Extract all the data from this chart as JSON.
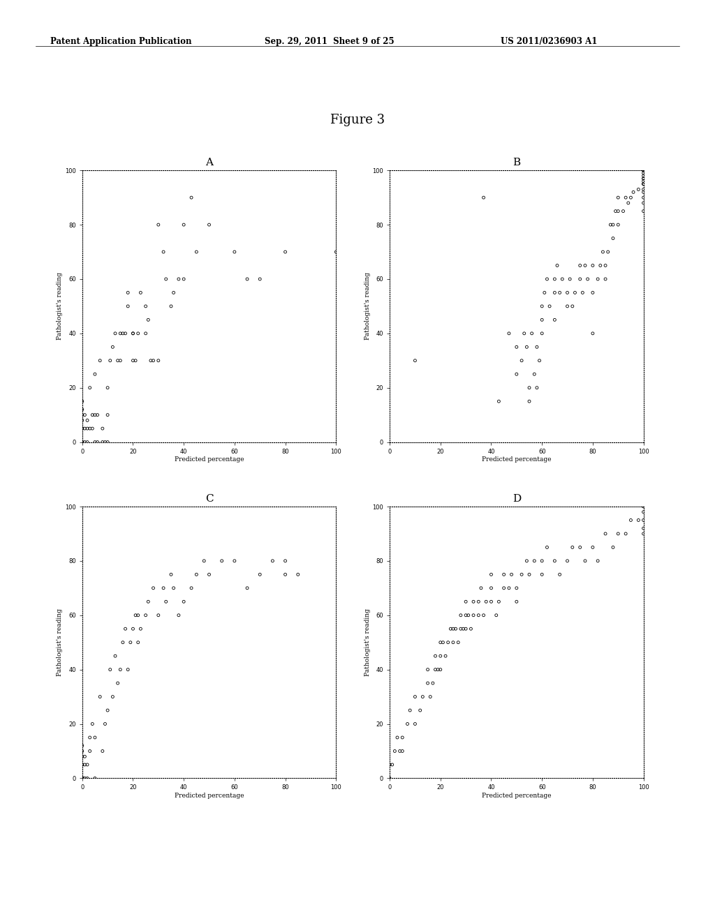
{
  "figure_title": "Figure 3",
  "header_left": "Patent Application Publication",
  "header_center": "Sep. 29, 2011  Sheet 9 of 25",
  "header_right": "US 2011/0236903 A1",
  "subplot_labels": [
    "A",
    "B",
    "C",
    "D"
  ],
  "xlabel": "Predicted percentage",
  "ylabel": "Pathologist's reading",
  "xlim": [
    0,
    100
  ],
  "ylim": [
    0,
    100
  ],
  "xticks": [
    0,
    20,
    40,
    60,
    80,
    100
  ],
  "yticks": [
    0,
    20,
    40,
    60,
    80,
    100
  ],
  "plot_A_x": [
    0,
    0,
    0,
    0,
    0,
    0,
    0,
    0,
    0,
    1,
    1,
    1,
    2,
    2,
    2,
    3,
    3,
    4,
    4,
    5,
    5,
    5,
    6,
    6,
    7,
    8,
    8,
    9,
    10,
    10,
    10,
    11,
    12,
    13,
    14,
    15,
    15,
    16,
    17,
    18,
    18,
    20,
    20,
    20,
    21,
    22,
    23,
    25,
    25,
    26,
    27,
    28,
    30,
    30,
    32,
    33,
    35,
    36,
    38,
    40,
    40,
    43,
    45,
    50,
    60,
    65,
    70,
    80,
    100
  ],
  "plot_A_y": [
    0,
    0,
    0,
    5,
    5,
    8,
    10,
    12,
    15,
    0,
    5,
    10,
    0,
    5,
    8,
    5,
    20,
    5,
    10,
    0,
    10,
    25,
    0,
    10,
    30,
    0,
    5,
    0,
    0,
    10,
    20,
    30,
    35,
    40,
    30,
    30,
    40,
    40,
    40,
    50,
    55,
    30,
    40,
    40,
    30,
    40,
    55,
    40,
    50,
    45,
    30,
    30,
    30,
    80,
    70,
    60,
    50,
    55,
    60,
    60,
    80,
    90,
    70,
    80,
    70,
    60,
    60,
    70,
    70
  ],
  "plot_B_x": [
    10,
    37,
    43,
    47,
    50,
    50,
    52,
    53,
    54,
    55,
    55,
    56,
    57,
    58,
    58,
    59,
    60,
    60,
    60,
    61,
    62,
    63,
    65,
    65,
    65,
    66,
    67,
    68,
    70,
    70,
    71,
    72,
    73,
    75,
    75,
    76,
    77,
    78,
    80,
    80,
    80,
    82,
    83,
    84,
    85,
    85,
    86,
    87,
    88,
    88,
    89,
    90,
    90,
    90,
    92,
    93,
    94,
    95,
    96,
    98,
    100,
    100,
    100,
    100,
    100,
    100,
    100,
    100,
    100,
    100,
    100,
    100,
    100,
    100,
    100
  ],
  "plot_B_y": [
    30,
    90,
    15,
    40,
    25,
    35,
    30,
    40,
    35,
    15,
    20,
    40,
    25,
    20,
    35,
    30,
    50,
    40,
    45,
    55,
    60,
    50,
    45,
    55,
    60,
    65,
    55,
    60,
    50,
    55,
    60,
    50,
    55,
    60,
    65,
    55,
    65,
    60,
    40,
    55,
    65,
    60,
    65,
    70,
    60,
    65,
    70,
    80,
    75,
    80,
    85,
    80,
    85,
    90,
    85,
    90,
    88,
    90,
    92,
    93,
    85,
    88,
    90,
    92,
    93,
    95,
    95,
    96,
    97,
    95,
    97,
    98,
    99,
    100,
    100
  ],
  "plot_C_x": [
    0,
    0,
    0,
    0,
    0,
    0,
    0,
    0,
    0,
    0,
    0,
    0,
    0,
    0,
    0,
    0,
    0,
    1,
    1,
    1,
    2,
    2,
    3,
    3,
    4,
    5,
    5,
    7,
    8,
    9,
    10,
    11,
    12,
    13,
    14,
    15,
    16,
    17,
    18,
    19,
    20,
    21,
    22,
    22,
    23,
    25,
    26,
    28,
    30,
    32,
    33,
    35,
    36,
    38,
    40,
    43,
    45,
    48,
    50,
    55,
    60,
    65,
    70,
    75,
    80,
    80,
    85
  ],
  "plot_C_y": [
    0,
    0,
    0,
    0,
    0,
    0,
    0,
    0,
    0,
    0,
    0,
    0,
    5,
    5,
    8,
    10,
    12,
    0,
    5,
    8,
    0,
    5,
    10,
    15,
    20,
    0,
    15,
    30,
    10,
    20,
    25,
    40,
    30,
    45,
    35,
    40,
    50,
    55,
    40,
    50,
    55,
    60,
    50,
    60,
    55,
    60,
    65,
    70,
    60,
    70,
    65,
    75,
    70,
    60,
    65,
    70,
    75,
    80,
    75,
    80,
    80,
    70,
    75,
    80,
    75,
    80,
    75
  ],
  "plot_D_x": [
    0,
    0,
    1,
    2,
    3,
    4,
    5,
    5,
    7,
    8,
    10,
    10,
    12,
    13,
    15,
    15,
    16,
    17,
    18,
    18,
    19,
    20,
    20,
    20,
    21,
    22,
    23,
    24,
    25,
    25,
    26,
    27,
    28,
    28,
    29,
    30,
    30,
    30,
    31,
    32,
    33,
    33,
    35,
    35,
    36,
    37,
    38,
    40,
    40,
    40,
    42,
    43,
    45,
    45,
    47,
    48,
    50,
    50,
    52,
    54,
    55,
    57,
    60,
    60,
    62,
    65,
    67,
    70,
    72,
    75,
    77,
    80,
    82,
    85,
    88,
    90,
    93,
    95,
    98,
    100,
    100,
    100,
    100,
    100
  ],
  "plot_D_y": [
    0,
    5,
    5,
    10,
    15,
    10,
    10,
    15,
    20,
    25,
    20,
    30,
    25,
    30,
    35,
    40,
    30,
    35,
    40,
    45,
    40,
    40,
    45,
    50,
    50,
    45,
    50,
    55,
    50,
    55,
    55,
    50,
    55,
    60,
    55,
    55,
    60,
    65,
    60,
    55,
    60,
    65,
    60,
    65,
    70,
    60,
    65,
    65,
    70,
    75,
    60,
    65,
    70,
    75,
    70,
    75,
    65,
    70,
    75,
    80,
    75,
    80,
    75,
    80,
    85,
    80,
    75,
    80,
    85,
    85,
    80,
    85,
    80,
    90,
    85,
    90,
    90,
    95,
    95,
    90,
    92,
    95,
    98,
    100
  ],
  "background_color": "#ffffff"
}
